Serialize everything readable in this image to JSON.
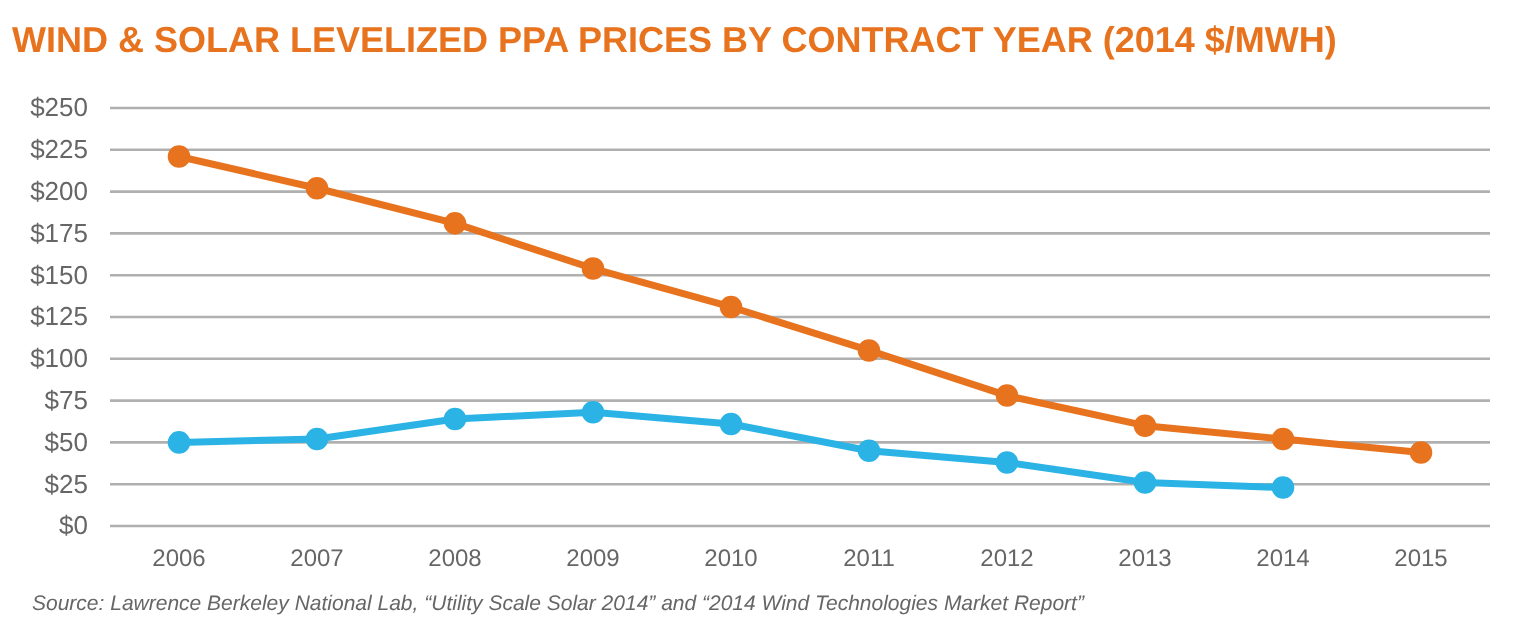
{
  "chart_data": {
    "type": "line",
    "title": "WIND & SOLAR LEVELIZED PPA PRICES BY CONTRACT YEAR (2014 $/MWH)",
    "annotations": [
      "Source: Lawrence Berkeley National Lab, “Utility Scale Solar 2014” and “2014 Wind Technologies Market Report”"
    ],
    "categories": [
      "2006",
      "2007",
      "2008",
      "2009",
      "2010",
      "2011",
      "2012",
      "2013",
      "2014",
      "2015"
    ],
    "series": [
      {
        "color": "#e8731e",
        "values": [
          221,
          202,
          181,
          154,
          131,
          105,
          78,
          60,
          52,
          44
        ]
      },
      {
        "color": "#2bb3e6",
        "values": [
          50,
          52,
          64,
          68,
          61,
          45,
          38,
          26,
          23,
          null
        ]
      }
    ],
    "ylim": [
      0,
      250
    ],
    "yticks": [
      {
        "value": 0,
        "label": "$0"
      },
      {
        "value": 25,
        "label": "$25"
      },
      {
        "value": 50,
        "label": "$50"
      },
      {
        "value": 75,
        "label": "$75"
      },
      {
        "value": 100,
        "label": "$100"
      },
      {
        "value": 125,
        "label": "$125"
      },
      {
        "value": 150,
        "label": "$150"
      },
      {
        "value": 175,
        "label": "$175"
      },
      {
        "value": 200,
        "label": "$200"
      },
      {
        "value": 225,
        "label": "$225"
      },
      {
        "value": 250,
        "label": "$250"
      }
    ],
    "grid": "y",
    "marker": "circle",
    "line_style": "solid"
  }
}
